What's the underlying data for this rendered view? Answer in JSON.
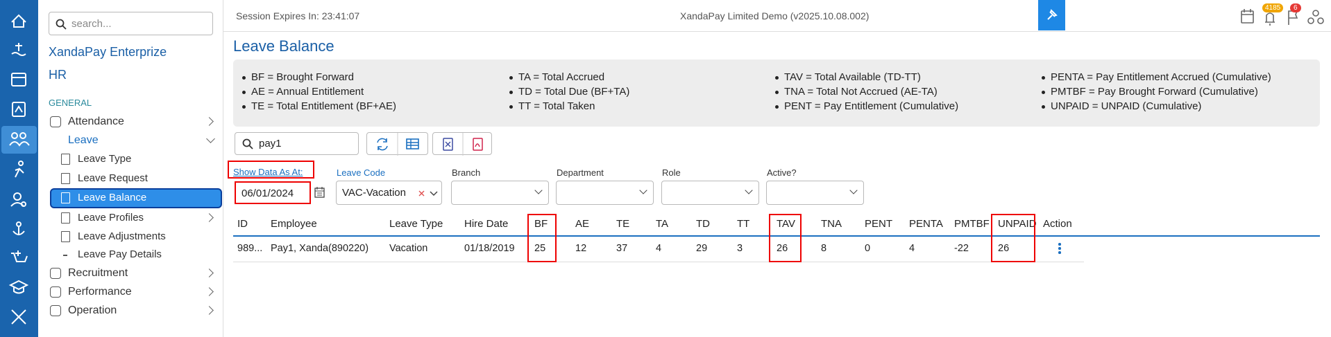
{
  "top_bar": {
    "session": "Session Expires In: 23:41:07",
    "company": "XandaPay Limited Demo (v2025.10.08.002)",
    "badges": [
      "4185",
      "6"
    ]
  },
  "sidebar": {
    "search_placeholder": "search...",
    "brand": "XandaPay Enterprize",
    "module": "HR",
    "section": "GENERAL",
    "menu": [
      "Attendance",
      "Leave",
      "Leave Type",
      "Leave Request",
      "Leave Balance",
      "Leave Profiles",
      "Leave Adjustments",
      "Leave Pay Details",
      "Recruitment",
      "Performance",
      "Operation"
    ]
  },
  "page": {
    "title": "Leave Balance",
    "legend": [
      "BF = Brought Forward",
      "AE = Annual Entitlement",
      "TE = Total Entitlement (BF+AE)",
      "TA = Total Accrued",
      "TD = Total Due (BF+TA)",
      "TT = Total Taken",
      "TAV = Total Available (TD-TT)",
      "TNA = Total Not Accrued (AE-TA)",
      "PENT = Pay Entitlement (Cumulative)",
      "PENTA = Pay Entitlement Accrued (Cumulative)",
      "PMTBF = Pay Brought Forward (Cumulative)",
      "UNPAID = UNPAID (Cumulative)"
    ],
    "search_value": "pay1",
    "filters": {
      "labels": [
        "Show Data As At:",
        "Leave Code",
        "Branch",
        "Department",
        "Role",
        "Active?"
      ],
      "date": "06/01/2024",
      "leave_code": "VAC-Vacation"
    }
  },
  "table": {
    "headers": [
      "ID",
      "Employee",
      "Leave Type",
      "Hire Date",
      "BF",
      "AE",
      "TE",
      "TA",
      "TD",
      "TT",
      "TAV",
      "TNA",
      "PENT",
      "PENTA",
      "PMTBF",
      "UNPAID",
      "Action"
    ],
    "rows": [
      [
        "989...",
        "Pay1, Xanda(890220)",
        "Vacation",
        "01/18/2019",
        "25",
        "12",
        "37",
        "4",
        "29",
        "3",
        "26",
        "8",
        "0",
        "4",
        "-22",
        "26"
      ]
    ]
  }
}
